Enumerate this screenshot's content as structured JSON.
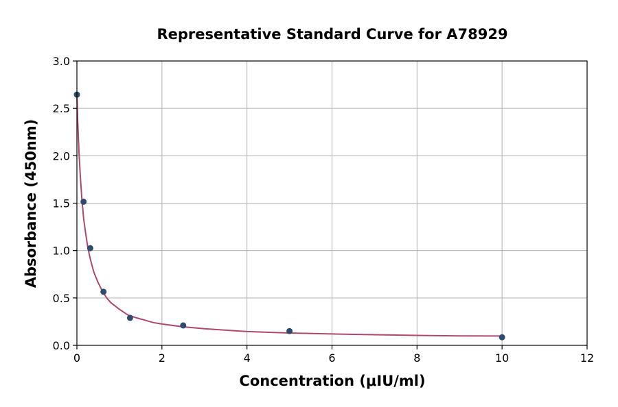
{
  "chart_data": {
    "type": "scatter",
    "title": "Representative Standard Curve for A78929",
    "xlabel": "Concentration (μIU/ml)",
    "ylabel": "Absorbance (450nm)",
    "xlim": [
      0,
      12
    ],
    "ylim": [
      0,
      3.0
    ],
    "xticks": [
      0,
      2,
      4,
      6,
      8,
      10,
      12
    ],
    "xtick_labels": [
      "0",
      "2",
      "4",
      "6",
      "8",
      "10",
      "12"
    ],
    "yticks": [
      0,
      0.5,
      1.0,
      1.5,
      2.0,
      2.5,
      3.0
    ],
    "ytick_labels": [
      "0.0",
      "0.5",
      "1.0",
      "1.5",
      "2.0",
      "2.5",
      "3.0"
    ],
    "grid": true,
    "series": [
      {
        "kind": "points",
        "x": [
          0,
          0.156,
          0.313,
          0.625,
          1.25,
          2.5,
          5,
          10
        ],
        "y": [
          2.645,
          1.515,
          1.025,
          0.565,
          0.29,
          0.21,
          0.15,
          0.085
        ],
        "color": "#2e4a6e"
      },
      {
        "kind": "fit-curve",
        "x": [
          0,
          0.02,
          0.05,
          0.08,
          0.12,
          0.16,
          0.2,
          0.25,
          0.3,
          0.35,
          0.4,
          0.5,
          0.6,
          0.7,
          0.8,
          1.0,
          1.2,
          1.4,
          1.6,
          1.8,
          2.0,
          2.5,
          3.0,
          3.5,
          4.0,
          5.0,
          6.0,
          7.0,
          8.0,
          9.0,
          10.0
        ],
        "y": [
          2.645,
          2.36,
          2.03,
          1.78,
          1.53,
          1.33,
          1.2,
          1.05,
          0.94,
          0.85,
          0.77,
          0.66,
          0.57,
          0.5,
          0.45,
          0.38,
          0.32,
          0.29,
          0.265,
          0.24,
          0.225,
          0.195,
          0.175,
          0.16,
          0.145,
          0.13,
          0.12,
          0.112,
          0.105,
          0.1,
          0.098
        ],
        "color": "#b0476a"
      }
    ]
  }
}
